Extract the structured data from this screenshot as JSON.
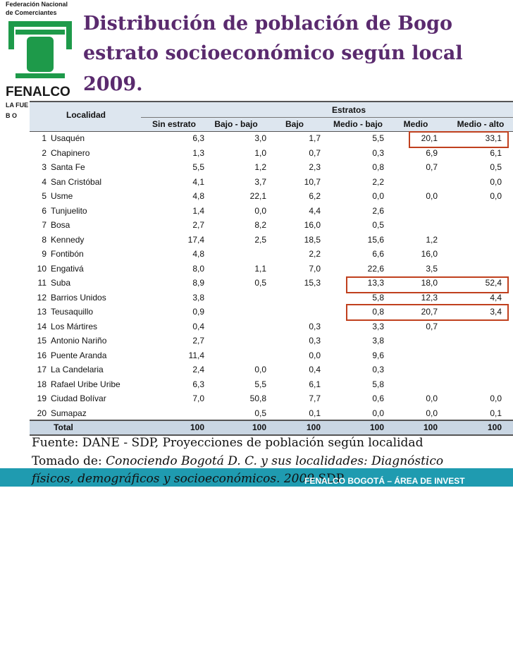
{
  "header": {
    "logo_line1": "Federación Nacional",
    "logo_line2": "de Comerciantes",
    "logo_brand": "FENALCO",
    "logo_tag1": "LA FUE",
    "logo_tag2": "B O",
    "title_lines": [
      "Distribución de población de Bogo",
      "estrato socioeconómico según local",
      "2009."
    ]
  },
  "table": {
    "first_header": "Localidad",
    "group_header": "Estratos",
    "columns": [
      "Sin estrato",
      "Bajo - bajo",
      "Bajo",
      "Medio - bajo",
      "Medio",
      "Medio - alto"
    ],
    "rows": [
      [
        "1",
        "Usaquén",
        "6,3",
        "3,0",
        "1,7",
        "5,5",
        "20,1",
        "33,1"
      ],
      [
        "2",
        "Chapinero",
        "1,3",
        "1,0",
        "0,7",
        "0,3",
        "6,9",
        "6,1"
      ],
      [
        "3",
        "Santa Fe",
        "5,5",
        "1,2",
        "2,3",
        "0,8",
        "0,7",
        "0,5"
      ],
      [
        "4",
        "San Cristóbal",
        "4,1",
        "3,7",
        "10,7",
        "2,2",
        null,
        "0,0"
      ],
      [
        "5",
        "Usme",
        "4,8",
        "22,1",
        "6,2",
        "0,0",
        "0,0",
        "0,0"
      ],
      [
        "6",
        "Tunjuelito",
        "1,4",
        "0,0",
        "4,4",
        "2,6",
        null,
        null
      ],
      [
        "7",
        "Bosa",
        "2,7",
        "8,2",
        "16,0",
        "0,5",
        null,
        null
      ],
      [
        "8",
        "Kennedy",
        "17,4",
        "2,5",
        "18,5",
        "15,6",
        "1,2",
        null
      ],
      [
        "9",
        "Fontibón",
        "4,8",
        null,
        "2,2",
        "6,6",
        "16,0",
        null
      ],
      [
        "10",
        "Engativá",
        "8,0",
        "1,1",
        "7,0",
        "22,6",
        "3,5",
        null
      ],
      [
        "11",
        "Suba",
        "8,9",
        "0,5",
        "15,3",
        "13,3",
        "18,0",
        "52,4"
      ],
      [
        "12",
        "Barrios Unidos",
        "3,8",
        null,
        null,
        "5,8",
        "12,3",
        "4,4"
      ],
      [
        "13",
        "Teusaquillo",
        "0,9",
        null,
        null,
        "0,8",
        "20,7",
        "3,4"
      ],
      [
        "14",
        "Los Mártires",
        "0,4",
        null,
        "0,3",
        "3,3",
        "0,7",
        null
      ],
      [
        "15",
        "Antonio Nariño",
        "2,7",
        null,
        "0,3",
        "3,8",
        null,
        null
      ],
      [
        "16",
        "Puente Aranda",
        "11,4",
        null,
        "0,0",
        "9,6",
        null,
        null
      ],
      [
        "17",
        "La Candelaria",
        "2,4",
        "0,0",
        "0,4",
        "0,3",
        null,
        null
      ],
      [
        "18",
        "Rafael Uribe Uribe",
        "6,3",
        "5,5",
        "6,1",
        "5,8",
        null,
        null
      ],
      [
        "19",
        "Ciudad Bolívar",
        "7,0",
        "50,8",
        "7,7",
        "0,6",
        "0,0",
        "0,0"
      ],
      [
        "20",
        "Sumapaz",
        null,
        "0,5",
        "0,1",
        "0,0",
        "0,0",
        "0,1"
      ]
    ],
    "total": [
      "Total",
      "100",
      "100",
      "100",
      "100",
      "100",
      "100"
    ]
  },
  "footer": {
    "source": "Fuente: DANE - SDP, Proyecciones de población según localidad",
    "taken_prefix": "Tomado de: ",
    "taken_title_1": "Conociendo Bogotá D. C. y sus localidades: Diagnóstico",
    "taken_title_2": "físicos, demográficos y socioeconómicos. 2009",
    "taken_suffix": " SDP."
  },
  "band": "FENALCO BOGOTÁ – ÁREA DE INVEST"
}
